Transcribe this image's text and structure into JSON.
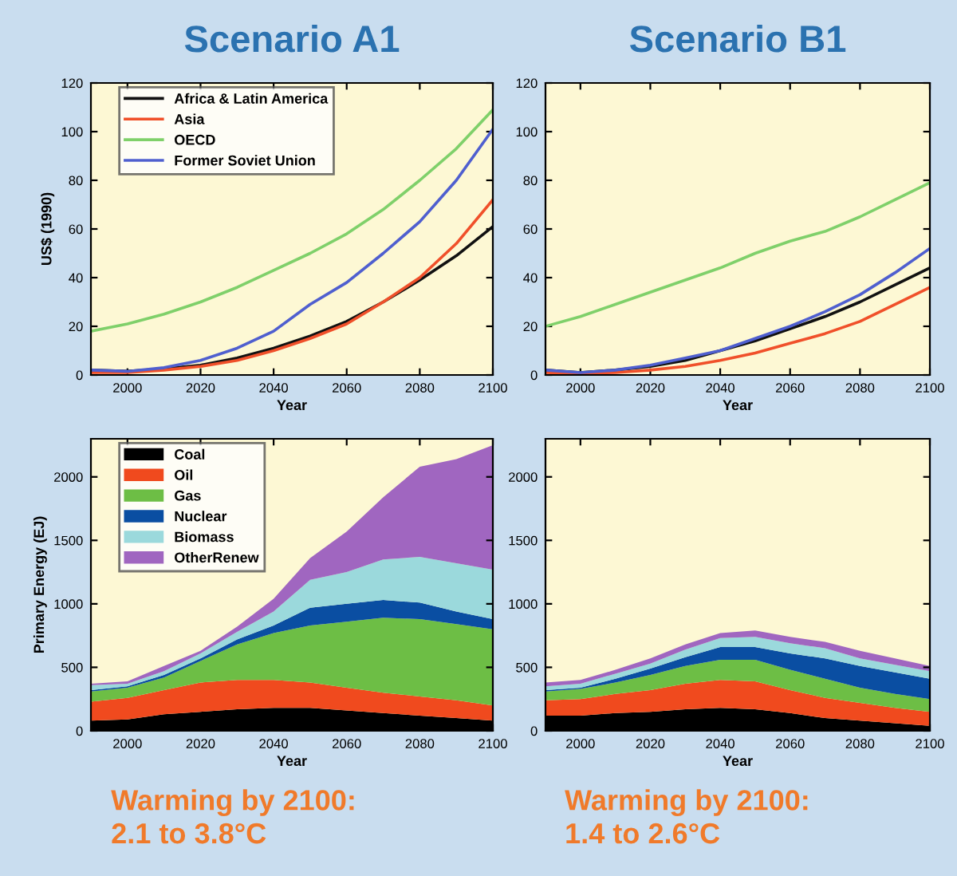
{
  "chart_data": [
    {
      "type": "line",
      "title": "Scenario A1",
      "xlabel": "Year",
      "ylabel": "US$ (1990)",
      "x": [
        1990,
        2000,
        2010,
        2020,
        2030,
        2040,
        2050,
        2060,
        2070,
        2080,
        2090,
        2100
      ],
      "xlim": [
        1990,
        2100
      ],
      "xticks": [
        2000,
        2020,
        2040,
        2060,
        2080,
        2100
      ],
      "ylim": [
        0,
        120
      ],
      "yticks": [
        0,
        20,
        40,
        60,
        80,
        100,
        120
      ],
      "legend": "top left",
      "series": [
        {
          "name": "Africa & Latin America",
          "color": "#111111",
          "values": [
            2,
            1.5,
            2.5,
            4,
            7,
            11,
            16,
            22,
            30,
            39,
            49,
            61
          ]
        },
        {
          "name": "Asia",
          "color": "#f0502a",
          "values": [
            1,
            1,
            2,
            3.5,
            6,
            10,
            15,
            21,
            30,
            40,
            54,
            72
          ]
        },
        {
          "name": "OECD",
          "color": "#7fd06a",
          "values": [
            18,
            21,
            25,
            30,
            36,
            43,
            50,
            58,
            68,
            80,
            93,
            109
          ]
        },
        {
          "name": "Former Soviet Union",
          "color": "#4f5fcf",
          "values": [
            2,
            1.5,
            3,
            6,
            11,
            18,
            29,
            38,
            50,
            63,
            80,
            101
          ]
        }
      ]
    },
    {
      "type": "line",
      "title": "Scenario B1",
      "xlabel": "Year",
      "x": [
        1990,
        2000,
        2010,
        2020,
        2030,
        2040,
        2050,
        2060,
        2070,
        2080,
        2090,
        2100
      ],
      "xlim": [
        1990,
        2100
      ],
      "xticks": [
        2000,
        2020,
        2040,
        2060,
        2080,
        2100
      ],
      "ylim": [
        0,
        120
      ],
      "yticks": [
        0,
        20,
        40,
        60,
        80,
        100,
        120
      ],
      "series": [
        {
          "color": "#111111",
          "values": [
            2,
            1,
            2,
            3.5,
            6,
            10,
            14,
            19,
            24,
            30,
            37,
            44
          ]
        },
        {
          "color": "#f0502a",
          "values": [
            1,
            0.5,
            1,
            2,
            3.5,
            6,
            9,
            13,
            17,
            22,
            29,
            36
          ]
        },
        {
          "color": "#7fd06a",
          "values": [
            20,
            24,
            29,
            34,
            39,
            44,
            50,
            55,
            59,
            65,
            72,
            79
          ]
        },
        {
          "color": "#4f5fcf",
          "values": [
            2,
            1,
            2,
            4,
            7,
            10,
            15,
            20,
            26,
            33,
            42,
            52
          ]
        }
      ]
    },
    {
      "type": "area",
      "stacked": true,
      "xlabel": "Year",
      "ylabel": "Primary Energy (EJ)",
      "x": [
        1990,
        2000,
        2010,
        2020,
        2030,
        2040,
        2050,
        2060,
        2070,
        2080,
        2090,
        2100
      ],
      "xlim": [
        1990,
        2100
      ],
      "xticks": [
        2000,
        2020,
        2040,
        2060,
        2080,
        2100
      ],
      "ylim": [
        0,
        2300
      ],
      "yticks": [
        0,
        500,
        1000,
        1500,
        2000
      ],
      "legend": "top left",
      "annotations": [
        "Warming by 2100:\n2.1 to 3.8°C"
      ],
      "series": [
        {
          "name": "Coal",
          "color": "#000000",
          "values": [
            80,
            90,
            130,
            150,
            170,
            180,
            180,
            160,
            140,
            120,
            100,
            80
          ]
        },
        {
          "name": "Oil",
          "color": "#f04a1e",
          "values": [
            150,
            170,
            190,
            230,
            230,
            220,
            200,
            180,
            160,
            150,
            140,
            120
          ]
        },
        {
          "name": "Gas",
          "color": "#6dbe45",
          "values": [
            80,
            80,
            100,
            170,
            280,
            370,
            450,
            520,
            590,
            610,
            600,
            600
          ]
        },
        {
          "name": "Nuclear",
          "color": "#0a4ea2",
          "values": [
            10,
            10,
            20,
            20,
            40,
            60,
            140,
            140,
            140,
            130,
            100,
            80
          ]
        },
        {
          "name": "Biomass",
          "color": "#9bd9dc",
          "values": [
            40,
            20,
            30,
            40,
            60,
            110,
            220,
            250,
            320,
            360,
            380,
            390
          ]
        },
        {
          "name": "OtherRenew",
          "color": "#a066c0",
          "values": [
            10,
            20,
            40,
            20,
            40,
            100,
            170,
            320,
            490,
            710,
            820,
            980
          ]
        }
      ]
    },
    {
      "type": "area",
      "stacked": true,
      "xlabel": "Year",
      "x": [
        1990,
        2000,
        2010,
        2020,
        2030,
        2040,
        2050,
        2060,
        2070,
        2080,
        2090,
        2100
      ],
      "xlim": [
        1990,
        2100
      ],
      "xticks": [
        2000,
        2020,
        2040,
        2060,
        2080,
        2100
      ],
      "ylim": [
        0,
        2300
      ],
      "yticks": [
        0,
        500,
        1000,
        1500,
        2000
      ],
      "annotations": [
        "Warming by 2100:\n1.4 to 2.6°C"
      ],
      "series": [
        {
          "color": "#000000",
          "values": [
            120,
            120,
            140,
            150,
            170,
            180,
            170,
            140,
            100,
            80,
            60,
            40
          ]
        },
        {
          "color": "#f04a1e",
          "values": [
            120,
            130,
            150,
            170,
            200,
            220,
            220,
            180,
            160,
            140,
            120,
            110
          ]
        },
        {
          "color": "#6dbe45",
          "values": [
            70,
            80,
            90,
            120,
            140,
            160,
            170,
            160,
            150,
            120,
            110,
            100
          ]
        },
        {
          "color": "#0a4ea2",
          "values": [
            10,
            10,
            30,
            50,
            70,
            100,
            100,
            130,
            160,
            170,
            170,
            160
          ]
        },
        {
          "color": "#9bd9dc",
          "values": [
            30,
            30,
            40,
            40,
            60,
            70,
            80,
            80,
            80,
            60,
            60,
            60
          ]
        },
        {
          "color": "#a066c0",
          "values": [
            30,
            30,
            30,
            40,
            40,
            40,
            50,
            50,
            50,
            60,
            50,
            40
          ]
        }
      ]
    }
  ]
}
